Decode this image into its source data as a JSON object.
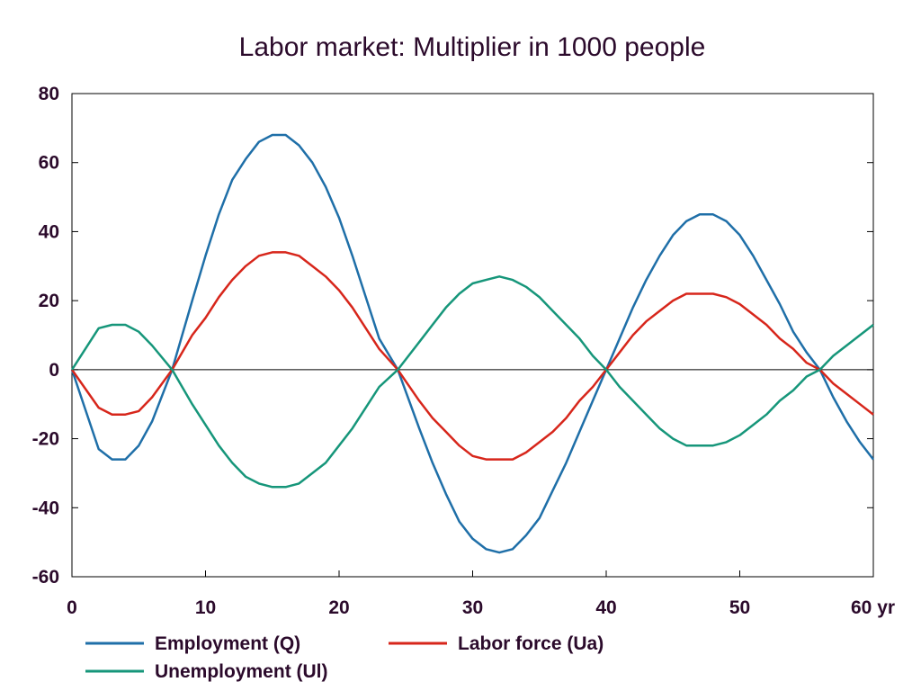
{
  "chart_data": {
    "type": "line",
    "title": "Labor market: Multiplier in 1000 people",
    "xlabel": "",
    "ylabel": "",
    "x_unit": "yr",
    "xlim": [
      0,
      60
    ],
    "ylim": [
      -60,
      80
    ],
    "x_ticks": [
      0,
      10,
      20,
      30,
      40,
      50,
      60
    ],
    "x_tick_labels": [
      "0",
      "10",
      "20",
      "30",
      "40",
      "50",
      "60 yr"
    ],
    "y_ticks": [
      80,
      60,
      40,
      20,
      0,
      -20,
      -40,
      -60
    ],
    "y_tick_labels": [
      "80",
      "60",
      "40",
      "20",
      "0",
      "-20",
      "-40",
      "-60"
    ],
    "grid": false,
    "legend_position": "bottom",
    "x": [
      0,
      2,
      3,
      4,
      5,
      6,
      7.5,
      9,
      10,
      11,
      12,
      13,
      14,
      15,
      16,
      17,
      18,
      19,
      20,
      21,
      22,
      23,
      24.4,
      26,
      27,
      28,
      29,
      30,
      31,
      32,
      33,
      34,
      35,
      36,
      37,
      38,
      39,
      40,
      41,
      42,
      43,
      44,
      45,
      46,
      47,
      48,
      49,
      50,
      51,
      52,
      53,
      54,
      55,
      56,
      57,
      58,
      59,
      60
    ],
    "series": [
      {
        "name": "Employment (Q)",
        "color": "#1f6fa8",
        "values": [
          0,
          -23,
          -26,
          -26,
          -22,
          -15,
          0,
          20,
          33,
          45,
          55,
          61,
          66,
          68,
          68,
          65,
          60,
          53,
          44,
          33,
          21,
          9,
          0,
          -17,
          -27,
          -36,
          -44,
          -49,
          -52,
          -53,
          -52,
          -48,
          -43,
          -35,
          -27,
          -18,
          -9,
          0,
          9,
          18,
          26,
          33,
          39,
          43,
          45,
          45,
          43,
          39,
          33,
          26,
          19,
          11,
          5,
          0,
          -8,
          -15,
          -21,
          -26
        ]
      },
      {
        "name": "Labor force (Ua)",
        "color": "#d7261b",
        "values": [
          0,
          -11,
          -13,
          -13,
          -12,
          -8,
          0,
          10,
          15,
          21,
          26,
          30,
          33,
          34,
          34,
          33,
          30,
          27,
          23,
          18,
          12,
          6,
          0,
          -9,
          -14,
          -18,
          -22,
          -25,
          -26,
          -26,
          -26,
          -24,
          -21,
          -18,
          -14,
          -9,
          -5,
          0,
          5,
          10,
          14,
          17,
          20,
          22,
          22,
          22,
          21,
          19,
          16,
          13,
          9,
          6,
          2,
          0,
          -4,
          -7,
          -10,
          -13
        ]
      },
      {
        "name": "Unemployment (Ul)",
        "color": "#16967a",
        "values": [
          0,
          12,
          13,
          13,
          11,
          7,
          0,
          -10,
          -16,
          -22,
          -27,
          -31,
          -33,
          -34,
          -34,
          -33,
          -30,
          -27,
          -22,
          -17,
          -11,
          -5,
          0,
          8,
          13,
          18,
          22,
          25,
          26,
          27,
          26,
          24,
          21,
          17,
          13,
          9,
          4,
          0,
          -5,
          -9,
          -13,
          -17,
          -20,
          -22,
          -22,
          -22,
          -21,
          -19,
          -16,
          -13,
          -9,
          -6,
          -2,
          0,
          4,
          7,
          10,
          13
        ]
      }
    ]
  }
}
